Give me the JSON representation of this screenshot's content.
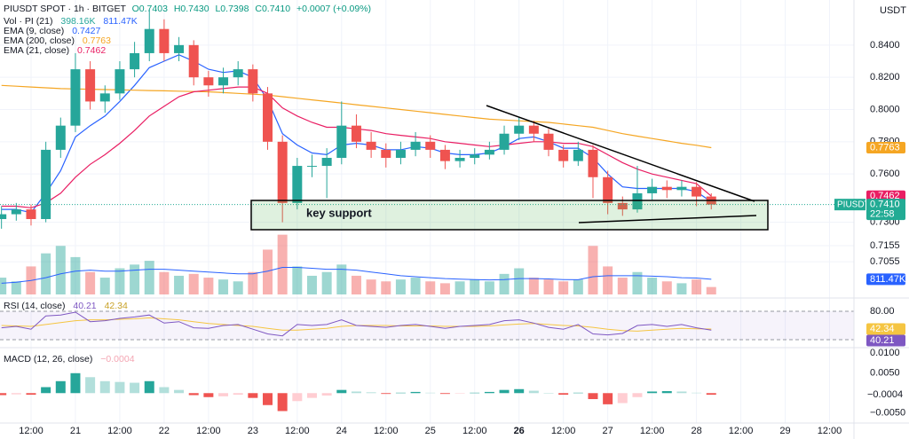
{
  "chart_data": [
    {
      "type": "candlestick",
      "title": "PIUSDT SPOT · 1h · BITGET",
      "stats": [
        "O0.7403",
        "H0.7430",
        "L0.7398",
        "C0.7410",
        "+0.0007 (+0.09%)"
      ],
      "unit": "USDT",
      "up_color": "#26a69a",
      "down_color": "#ef5350",
      "x": [
        4,
        8,
        12,
        16,
        20,
        24,
        28,
        32,
        36,
        40,
        44,
        48,
        52,
        56,
        60,
        64,
        68,
        72,
        76,
        80,
        84,
        88,
        92,
        96,
        100,
        104,
        108,
        112,
        116,
        120,
        124,
        128,
        132,
        136,
        140,
        144,
        148,
        152,
        156,
        160,
        164,
        168,
        172,
        176,
        180,
        184,
        188,
        192,
        196
      ],
      "ohlc": [
        [
          0.732,
          0.74,
          0.726,
          0.735
        ],
        [
          0.735,
          0.742,
          0.731,
          0.738
        ],
        [
          0.738,
          0.741,
          0.728,
          0.732
        ],
        [
          0.732,
          0.78,
          0.73,
          0.775
        ],
        [
          0.775,
          0.795,
          0.77,
          0.79
        ],
        [
          0.79,
          0.835,
          0.786,
          0.825
        ],
        [
          0.825,
          0.83,
          0.8,
          0.805
        ],
        [
          0.805,
          0.815,
          0.798,
          0.81
        ],
        [
          0.81,
          0.83,
          0.806,
          0.825
        ],
        [
          0.825,
          0.842,
          0.82,
          0.835
        ],
        [
          0.835,
          0.862,
          0.83,
          0.85
        ],
        [
          0.85,
          0.856,
          0.83,
          0.835
        ],
        [
          0.835,
          0.845,
          0.83,
          0.84
        ],
        [
          0.84,
          0.843,
          0.815,
          0.82
        ],
        [
          0.82,
          0.824,
          0.808,
          0.815
        ],
        [
          0.815,
          0.826,
          0.81,
          0.82
        ],
        [
          0.82,
          0.83,
          0.815,
          0.825
        ],
        [
          0.825,
          0.828,
          0.805,
          0.81
        ],
        [
          0.81,
          0.814,
          0.775,
          0.78
        ],
        [
          0.78,
          0.784,
          0.73,
          0.742
        ],
        [
          0.742,
          0.77,
          0.738,
          0.765
        ],
        [
          0.765,
          0.772,
          0.758,
          0.765
        ],
        [
          0.765,
          0.776,
          0.745,
          0.77
        ],
        [
          0.77,
          0.805,
          0.766,
          0.79
        ],
        [
          0.79,
          0.797,
          0.776,
          0.78
        ],
        [
          0.78,
          0.786,
          0.77,
          0.775
        ],
        [
          0.775,
          0.779,
          0.764,
          0.77
        ],
        [
          0.77,
          0.78,
          0.766,
          0.775
        ],
        [
          0.775,
          0.786,
          0.771,
          0.78
        ],
        [
          0.78,
          0.784,
          0.77,
          0.775
        ],
        [
          0.775,
          0.778,
          0.763,
          0.768
        ],
        [
          0.768,
          0.775,
          0.764,
          0.77
        ],
        [
          0.77,
          0.776,
          0.766,
          0.772
        ],
        [
          0.772,
          0.78,
          0.769,
          0.775
        ],
        [
          0.775,
          0.79,
          0.772,
          0.785
        ],
        [
          0.785,
          0.795,
          0.781,
          0.79
        ],
        [
          0.79,
          0.793,
          0.78,
          0.785
        ],
        [
          0.785,
          0.788,
          0.771,
          0.775
        ],
        [
          0.775,
          0.778,
          0.764,
          0.768
        ],
        [
          0.768,
          0.78,
          0.765,
          0.775
        ],
        [
          0.775,
          0.778,
          0.745,
          0.758
        ],
        [
          0.758,
          0.762,
          0.735,
          0.742
        ],
        [
          0.742,
          0.746,
          0.734,
          0.738
        ],
        [
          0.738,
          0.765,
          0.736,
          0.748
        ],
        [
          0.748,
          0.757,
          0.744,
          0.752
        ],
        [
          0.752,
          0.756,
          0.745,
          0.75
        ],
        [
          0.75,
          0.756,
          0.746,
          0.752
        ],
        [
          0.752,
          0.755,
          0.74,
          0.746
        ],
        [
          0.746,
          0.748,
          0.738,
          0.741
        ]
      ],
      "xlim": [
        3.6,
        234.6
      ],
      "xticks": [
        {
          "value": 12,
          "label": "12:00"
        },
        {
          "value": 24,
          "label": "21"
        },
        {
          "value": 36,
          "label": "12:00"
        },
        {
          "value": 48,
          "label": "22"
        },
        {
          "value": 60,
          "label": "12:00"
        },
        {
          "value": 72,
          "label": "23"
        },
        {
          "value": 84,
          "label": "12:00"
        },
        {
          "value": 96,
          "label": "24"
        },
        {
          "value": 108,
          "label": "12:00"
        },
        {
          "value": 120,
          "label": "25"
        },
        {
          "value": 132,
          "label": "12:00"
        },
        {
          "value": 144,
          "label": "26"
        },
        {
          "value": 156,
          "label": "12:00"
        },
        {
          "value": 168,
          "label": "27"
        },
        {
          "value": 180,
          "label": "12:00"
        },
        {
          "value": 192,
          "label": "28"
        },
        {
          "value": 204,
          "label": "12:00"
        },
        {
          "value": 216,
          "label": "29"
        },
        {
          "value": 228,
          "label": "12:00"
        }
      ],
      "ylim": [
        0.683,
        0.868
      ],
      "yticks": [
        {
          "value": 0.84,
          "label": "0.8400"
        },
        {
          "value": 0.82,
          "label": "0.8200"
        },
        {
          "value": 0.8,
          "label": "0.8000"
        },
        {
          "value": 0.78,
          "label": "0.7800"
        },
        {
          "value": 0.76,
          "label": "0.7600"
        },
        {
          "value": 0.73,
          "label": "0.7300"
        },
        {
          "value": 0.7155,
          "label": "0.7155"
        },
        {
          "value": 0.7055,
          "label": "0.7055"
        }
      ],
      "grid": true,
      "series": [
        {
          "name": "EMA (9, close)",
          "color": "#2962ff",
          "last_label": "0.7427",
          "values": [
            0.738,
            0.738,
            0.736,
            0.748,
            0.762,
            0.783,
            0.79,
            0.796,
            0.805,
            0.815,
            0.826,
            0.83,
            0.834,
            0.83,
            0.825,
            0.823,
            0.824,
            0.82,
            0.806,
            0.785,
            0.778,
            0.773,
            0.772,
            0.778,
            0.779,
            0.778,
            0.775,
            0.775,
            0.777,
            0.776,
            0.773,
            0.772,
            0.772,
            0.773,
            0.777,
            0.782,
            0.783,
            0.78,
            0.776,
            0.776,
            0.77,
            0.76,
            0.752,
            0.751,
            0.751,
            0.751,
            0.751,
            0.749,
            0.7427
          ]
        },
        {
          "name": "EMA (200, close)",
          "color": "#f5a623",
          "last_label": "0.7763",
          "values": [
            0.815,
            0.8145,
            0.814,
            0.8135,
            0.813,
            0.8128,
            0.8126,
            0.8124,
            0.8122,
            0.812,
            0.8118,
            0.8116,
            0.8114,
            0.8112,
            0.811,
            0.8105,
            0.81,
            0.8095,
            0.809,
            0.808,
            0.807,
            0.806,
            0.805,
            0.804,
            0.803,
            0.802,
            0.801,
            0.8,
            0.799,
            0.798,
            0.797,
            0.796,
            0.795,
            0.794,
            0.7935,
            0.793,
            0.7925,
            0.792,
            0.791,
            0.79,
            0.789,
            0.787,
            0.785,
            0.7835,
            0.782,
            0.7805,
            0.779,
            0.7778,
            0.7763
          ]
        },
        {
          "name": "EMA (21, close)",
          "color": "#e91e63",
          "last_label": "0.7462",
          "values": [
            0.74,
            0.74,
            0.739,
            0.742,
            0.748,
            0.758,
            0.766,
            0.772,
            0.779,
            0.787,
            0.796,
            0.802,
            0.808,
            0.811,
            0.812,
            0.813,
            0.814,
            0.814,
            0.81,
            0.801,
            0.796,
            0.792,
            0.789,
            0.789,
            0.788,
            0.787,
            0.785,
            0.784,
            0.783,
            0.782,
            0.78,
            0.779,
            0.778,
            0.777,
            0.778,
            0.779,
            0.78,
            0.78,
            0.779,
            0.779,
            0.777,
            0.772,
            0.767,
            0.763,
            0.76,
            0.758,
            0.756,
            0.754,
            0.7462
          ]
        }
      ],
      "price_badge": {
        "name": "PIUSDT",
        "value": 0.741,
        "label": "0.7410",
        "countdown": "22:58",
        "color": "#22ab94"
      },
      "volume": {
        "name": "Vol · PI (21)",
        "last_label": "398.16K",
        "ylim": [
          0,
          3800000
        ],
        "values": [
          900000,
          700000,
          1500000,
          2200000,
          2600000,
          2000000,
          1200000,
          900000,
          1400000,
          1600000,
          1800000,
          1200000,
          1000000,
          1100000,
          900000,
          800000,
          700000,
          1200000,
          2400000,
          3200000,
          1500000,
          1000000,
          1200000,
          1600000,
          1000000,
          800000,
          700000,
          800000,
          900000,
          700000,
          600000,
          700000,
          800000,
          700000,
          1100000,
          1400000,
          900000,
          800000,
          700000,
          800000,
          2600000,
          1500000,
          900000,
          1200000,
          900000,
          700000,
          600000,
          800000,
          398160
        ],
        "ma": {
          "color": "#2962ff",
          "last_label": "811.47K",
          "values": [
            600000,
            650000,
            750000,
            900000,
            1100000,
            1250000,
            1300000,
            1250000,
            1250000,
            1300000,
            1350000,
            1350000,
            1300000,
            1250000,
            1200000,
            1150000,
            1100000,
            1100000,
            1250000,
            1450000,
            1450000,
            1400000,
            1350000,
            1350000,
            1300000,
            1200000,
            1100000,
            1000000,
            950000,
            900000,
            850000,
            820000,
            800000,
            780000,
            800000,
            850000,
            850000,
            830000,
            800000,
            790000,
            950000,
            1000000,
            1000000,
            1000000,
            980000,
            950000,
            900000,
            880000,
            811470
          ]
        }
      },
      "annotations": [
        {
          "text": "key support"
        }
      ]
    },
    {
      "type": "line",
      "title": "RSI (14, close)",
      "ylim": [
        3,
        100.6
      ],
      "yticks": [
        {
          "value": 80,
          "label": "80.00"
        }
      ],
      "band": [
        20,
        80
      ],
      "series": [
        {
          "color": "#7e57c2",
          "last_label": "40.21",
          "values": [
            45,
            48,
            42,
            70,
            72,
            78,
            58,
            60,
            65,
            68,
            72,
            55,
            58,
            45,
            44,
            50,
            52,
            42,
            32,
            28,
            52,
            50,
            52,
            62,
            50,
            48,
            46,
            50,
            52,
            48,
            44,
            48,
            50,
            52,
            60,
            62,
            55,
            46,
            42,
            52,
            32,
            30,
            33,
            50,
            52,
            48,
            52,
            45,
            40.21
          ]
        },
        {
          "color": "#f5c542",
          "last_label": "42.34",
          "values": [
            50,
            49,
            48,
            52,
            56,
            60,
            62,
            62,
            63,
            64,
            66,
            64,
            62,
            58,
            54,
            52,
            50,
            48,
            44,
            40,
            40,
            42,
            44,
            48,
            50,
            50,
            50,
            49,
            49,
            49,
            48,
            48,
            48,
            49,
            51,
            53,
            54,
            52,
            50,
            49,
            46,
            42,
            39,
            38,
            40,
            42,
            44,
            43,
            42.34
          ]
        }
      ]
    },
    {
      "type": "bar",
      "title": "MACD (12, 26, close)",
      "last_label": "−0.0004",
      "colors": [
        "#26a69a",
        "#b2dfdb",
        "#ffcdd2",
        "#ef5350"
      ],
      "ylim": [
        -0.0075,
        0.0114
      ],
      "yticks": [
        {
          "value": 0.01,
          "label": "0.0100"
        },
        {
          "value": 0.005,
          "label": "0.0050"
        },
        {
          "value": -0.005,
          "label": "−0.0050"
        }
      ],
      "values": [
        -0.0005,
        -0.0003,
        -0.0004,
        0.0015,
        0.003,
        0.005,
        0.004,
        0.003,
        0.0028,
        0.0026,
        0.003,
        0.0015,
        0.0008,
        -0.0005,
        -0.001,
        -0.0008,
        -0.0004,
        -0.0012,
        -0.003,
        -0.0045,
        -0.002,
        -0.0012,
        -0.0006,
        0.0008,
        0.0004,
        0.0002,
        -0.0002,
        0.0001,
        0.0003,
        0.0001,
        -0.0002,
        -0.0001,
        0.0001,
        0.0003,
        0.0008,
        0.001,
        0.0006,
        0,
        -0.0004,
        0.0001,
        -0.0015,
        -0.0028,
        -0.0025,
        -0.001,
        0.0004,
        0.0005,
        0.0004,
        0.0001,
        -0.0004
      ]
    }
  ]
}
